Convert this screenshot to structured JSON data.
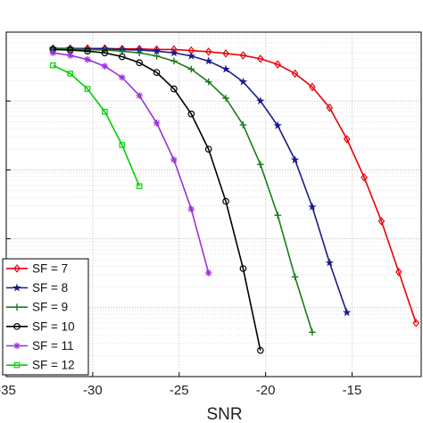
{
  "chart_data": {
    "type": "line",
    "title": "",
    "xlabel": "SNR",
    "ylabel": "",
    "x_ticks": [
      -35,
      -30,
      -25,
      -20,
      -15
    ],
    "x_tick_labels": [
      "-35",
      "-30",
      "-25",
      "-20",
      "-15"
    ],
    "xlim": [
      -35,
      -11
    ],
    "y_scale": "log",
    "ylim": [
      1e-05,
      1
    ],
    "grid": true,
    "legend_position": "bottom-left",
    "series": [
      {
        "name": "SF = 7",
        "color": "#e8000b",
        "marker": "diamond",
        "x": [
          -32.3,
          -31.3,
          -30.3,
          -29.3,
          -28.3,
          -27.3,
          -26.3,
          -25.3,
          -24.3,
          -23.3,
          -22.3,
          -21.3,
          -20.3,
          -19.3,
          -18.3,
          -17.3,
          -16.3,
          -15.3,
          -14.3,
          -13.3,
          -12.3,
          -11.3
        ],
        "y": [
          0.58,
          0.58,
          0.58,
          0.58,
          0.57,
          0.57,
          0.56,
          0.56,
          0.54,
          0.52,
          0.49,
          0.46,
          0.41,
          0.34,
          0.25,
          0.16,
          0.08,
          0.028,
          0.0078,
          0.0018,
          0.00033,
          6e-05
        ]
      },
      {
        "name": "SF = 8",
        "color": "#1a1a8c",
        "marker": "star",
        "x": [
          -32.3,
          -31.3,
          -30.3,
          -29.3,
          -28.3,
          -27.3,
          -26.3,
          -25.3,
          -24.3,
          -23.3,
          -22.3,
          -21.3,
          -20.3,
          -19.3,
          -18.3,
          -17.3,
          -16.3,
          -15.3
        ],
        "y": [
          0.58,
          0.58,
          0.57,
          0.57,
          0.56,
          0.55,
          0.53,
          0.5,
          0.45,
          0.38,
          0.29,
          0.19,
          0.1,
          0.044,
          0.014,
          0.0029,
          0.00045,
          8.5e-05
        ]
      },
      {
        "name": "SF = 9",
        "color": "#1a7a1a",
        "marker": "plus",
        "x": [
          -32.3,
          -31.3,
          -30.3,
          -29.3,
          -28.3,
          -27.3,
          -26.3,
          -25.3,
          -24.3,
          -23.3,
          -22.3,
          -21.3,
          -20.3,
          -19.3,
          -18.3,
          -17.3
        ],
        "y": [
          0.57,
          0.57,
          0.56,
          0.55,
          0.53,
          0.5,
          0.45,
          0.38,
          0.29,
          0.19,
          0.11,
          0.045,
          0.012,
          0.0022,
          0.00028,
          4.4e-05
        ]
      },
      {
        "name": "SF = 10",
        "color": "#000000",
        "marker": "circle",
        "x": [
          -32.3,
          -31.3,
          -30.3,
          -29.3,
          -28.3,
          -27.3,
          -26.3,
          -25.3,
          -24.3,
          -23.3,
          -22.3,
          -21.3,
          -20.3
        ],
        "y": [
          0.56,
          0.55,
          0.53,
          0.5,
          0.44,
          0.36,
          0.26,
          0.15,
          0.065,
          0.02,
          0.0035,
          0.00037,
          2.4e-05
        ]
      },
      {
        "name": "SF = 11",
        "color": "#9b30d9",
        "marker": "asterisk",
        "x": [
          -32.3,
          -31.3,
          -30.3,
          -29.3,
          -28.3,
          -27.3,
          -26.3,
          -25.3,
          -24.3,
          -23.3
        ],
        "y": [
          0.5,
          0.46,
          0.4,
          0.32,
          0.22,
          0.12,
          0.048,
          0.014,
          0.0027,
          0.00032
        ]
      },
      {
        "name": "SF = 12",
        "color": "#00d000",
        "marker": "square",
        "x": [
          -32.3,
          -31.3,
          -30.3,
          -29.3,
          -28.3,
          -27.3
        ],
        "y": [
          0.33,
          0.25,
          0.15,
          0.07,
          0.023,
          0.0058
        ]
      }
    ]
  }
}
